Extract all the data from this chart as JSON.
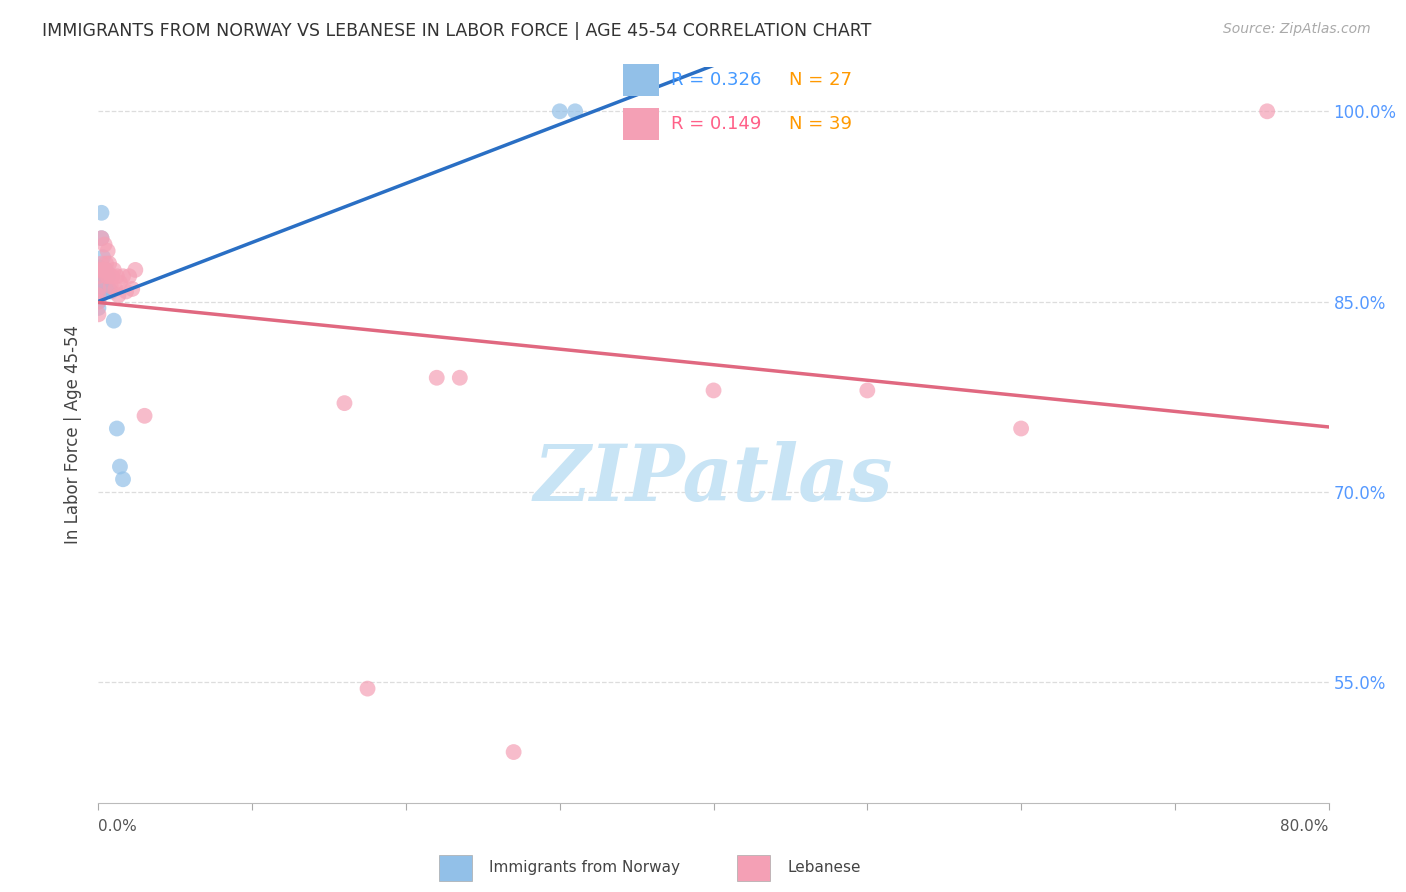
{
  "title": "IMMIGRANTS FROM NORWAY VS LEBANESE IN LABOR FORCE | AGE 45-54 CORRELATION CHART",
  "source": "Source: ZipAtlas.com",
  "ylabel": "In Labor Force | Age 45-54",
  "xlim": [
    0.0,
    0.8
  ],
  "ylim": [
    0.455,
    1.035
  ],
  "yticks": [
    0.55,
    0.7,
    0.85,
    1.0
  ],
  "ytick_labels": [
    "55.0%",
    "70.0%",
    "85.0%",
    "100.0%"
  ],
  "xtick_positions": [
    0.0,
    0.1,
    0.2,
    0.3,
    0.4,
    0.5,
    0.6,
    0.7,
    0.8
  ],
  "legend_r1": "R = 0.326",
  "legend_n1": "N = 27",
  "legend_r2": "R = 0.149",
  "legend_n2": "N = 39",
  "norway_color": "#92C0E8",
  "lebanese_color": "#F4A0B5",
  "norway_line_color": "#2A6FC4",
  "lebanese_line_color": "#E06880",
  "r_color_norway": "#4499FF",
  "n_color_norway": "#FF9900",
  "r_color_lebanese": "#FF6088",
  "n_color_lebanese": "#FF9900",
  "grid_color": "#DDDDDD",
  "norway_x": [
    0.0,
    0.0,
    0.0,
    0.0,
    0.0,
    0.0,
    0.0,
    0.0,
    0.0,
    0.002,
    0.002,
    0.003,
    0.003,
    0.004,
    0.004,
    0.005,
    0.005,
    0.005,
    0.006,
    0.007,
    0.008,
    0.01,
    0.012,
    0.014,
    0.016,
    0.3,
    0.31
  ],
  "norway_y": [
    0.87,
    0.872,
    0.875,
    0.875,
    0.877,
    0.858,
    0.855,
    0.85,
    0.845,
    0.92,
    0.9,
    0.885,
    0.875,
    0.865,
    0.86,
    0.875,
    0.87,
    0.858,
    0.87,
    0.86,
    0.858,
    0.835,
    0.75,
    0.72,
    0.71,
    1.0,
    1.0
  ],
  "lebanese_x": [
    0.0,
    0.0,
    0.0,
    0.0,
    0.0,
    0.0,
    0.002,
    0.002,
    0.003,
    0.004,
    0.004,
    0.005,
    0.005,
    0.006,
    0.006,
    0.007,
    0.008,
    0.008,
    0.009,
    0.01,
    0.011,
    0.012,
    0.013,
    0.014,
    0.016,
    0.018,
    0.02,
    0.022,
    0.024,
    0.03,
    0.16,
    0.175,
    0.22,
    0.235,
    0.27,
    0.4,
    0.5,
    0.6,
    0.76
  ],
  "lebanese_y": [
    0.875,
    0.87,
    0.86,
    0.855,
    0.85,
    0.84,
    0.9,
    0.88,
    0.875,
    0.895,
    0.875,
    0.88,
    0.87,
    0.89,
    0.87,
    0.88,
    0.87,
    0.862,
    0.87,
    0.875,
    0.86,
    0.87,
    0.855,
    0.865,
    0.87,
    0.858,
    0.87,
    0.86,
    0.875,
    0.76,
    0.77,
    0.545,
    0.79,
    0.79,
    0.495,
    0.78,
    0.78,
    0.75,
    1.0
  ],
  "watermark_text": "ZIPatlas",
  "watermark_color": "#C8E4F5"
}
